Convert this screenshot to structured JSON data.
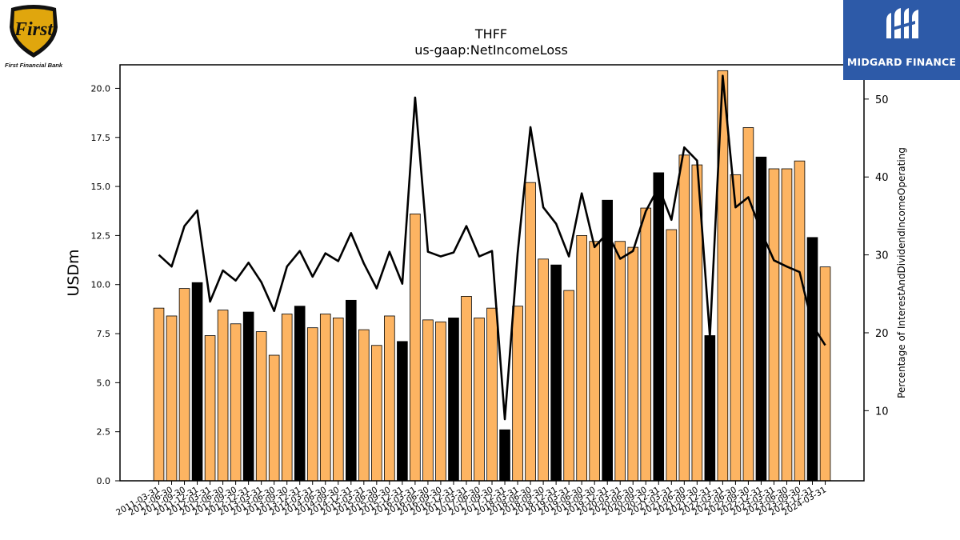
{
  "logos": {
    "left_text": "First Financial Bank",
    "left_mark": "First",
    "right_text": "MIDGARD FINANCE"
  },
  "chart_data": {
    "type": "bar",
    "title": "THFF",
    "subtitle": "us-gaap:NetIncomeLoss",
    "ylabel": "USDm",
    "y2label": "Percentage of InterestAndDividendIncomeOperating",
    "ylim": [
      0,
      21.2
    ],
    "y2lim": [
      1,
      54.4
    ],
    "yticks": [
      0.0,
      2.5,
      5.0,
      7.5,
      10.0,
      12.5,
      15.0,
      17.5,
      20.0
    ],
    "y2ticks": [
      10,
      20,
      30,
      40,
      50
    ],
    "colors": {
      "quarter_bar": "#fdb462",
      "year_end_bar": "#000000",
      "line": "#000000",
      "edge": "#000000"
    },
    "categories": [
      "2011-03-31",
      "2011-06-30",
      "2011-09-30",
      "2011-12-31",
      "2012-03-31",
      "2012-06-30",
      "2012-09-30",
      "2012-12-31",
      "2013-03-31",
      "2013-06-30",
      "2013-09-30",
      "2013-12-31",
      "2014-03-31",
      "2014-06-30",
      "2014-09-30",
      "2014-12-31",
      "2015-03-31",
      "2015-06-30",
      "2015-09-30",
      "2015-12-31",
      "2016-03-31",
      "2016-06-30",
      "2016-09-30",
      "2016-12-31",
      "2017-03-31",
      "2017-06-30",
      "2017-09-30",
      "2017-12-31",
      "2018-03-31",
      "2018-06-30",
      "2018-09-30",
      "2018-12-31",
      "2019-03-31",
      "2019-06-30",
      "2019-09-30",
      "2019-12-31",
      "2020-03-31",
      "2020-06-30",
      "2020-09-30",
      "2020-12-31",
      "2021-03-31",
      "2021-06-30",
      "2021-09-30",
      "2021-12-31",
      "2022-03-31",
      "2022-06-30",
      "2022-09-30",
      "2022-12-31",
      "2023-03-31",
      "2023-06-30",
      "2023-09-30",
      "2023-12-31",
      "2024-03-31"
    ],
    "series": [
      {
        "kind": "bar",
        "axis": "left",
        "values": [
          8.8,
          8.4,
          9.8,
          10.1,
          7.4,
          8.7,
          8.0,
          8.6,
          7.6,
          6.4,
          8.5,
          8.9,
          7.8,
          8.5,
          8.3,
          9.2,
          7.7,
          6.9,
          8.4,
          7.1,
          13.6,
          8.2,
          8.1,
          8.3,
          9.4,
          8.3,
          8.8,
          2.6,
          8.9,
          15.2,
          11.3,
          11.0,
          9.7,
          12.5,
          12.2,
          14.3,
          12.2,
          11.9,
          13.9,
          15.7,
          12.8,
          16.6,
          16.1,
          7.4,
          20.9,
          15.6,
          18.0,
          16.5,
          15.9,
          15.9,
          16.3,
          12.4,
          10.9
        ],
        "year_end": [
          false,
          false,
          false,
          true,
          false,
          false,
          false,
          true,
          false,
          false,
          false,
          true,
          false,
          false,
          false,
          true,
          false,
          false,
          false,
          true,
          false,
          false,
          false,
          true,
          false,
          false,
          false,
          true,
          false,
          false,
          false,
          true,
          false,
          false,
          false,
          true,
          false,
          false,
          false,
          true,
          false,
          false,
          false,
          true,
          false,
          false,
          false,
          true,
          false,
          false,
          false,
          true,
          false
        ]
      },
      {
        "kind": "line",
        "axis": "right",
        "values": [
          30.0,
          28.5,
          33.7,
          35.7,
          24.0,
          28.0,
          26.7,
          29.0,
          26.5,
          22.8,
          28.5,
          30.5,
          27.2,
          30.2,
          29.2,
          32.8,
          28.9,
          25.7,
          30.4,
          26.3,
          50.2,
          30.4,
          29.8,
          30.3,
          33.7,
          29.8,
          30.5,
          8.9,
          30.2,
          46.4,
          36.1,
          34.0,
          29.8,
          37.9,
          31.0,
          32.8,
          29.5,
          30.5,
          35.6,
          38.7,
          34.5,
          43.8,
          42.1,
          19.5,
          53.0,
          36.1,
          37.4,
          33.0,
          29.3,
          28.5,
          27.8,
          21.0,
          18.4
        ]
      }
    ]
  }
}
